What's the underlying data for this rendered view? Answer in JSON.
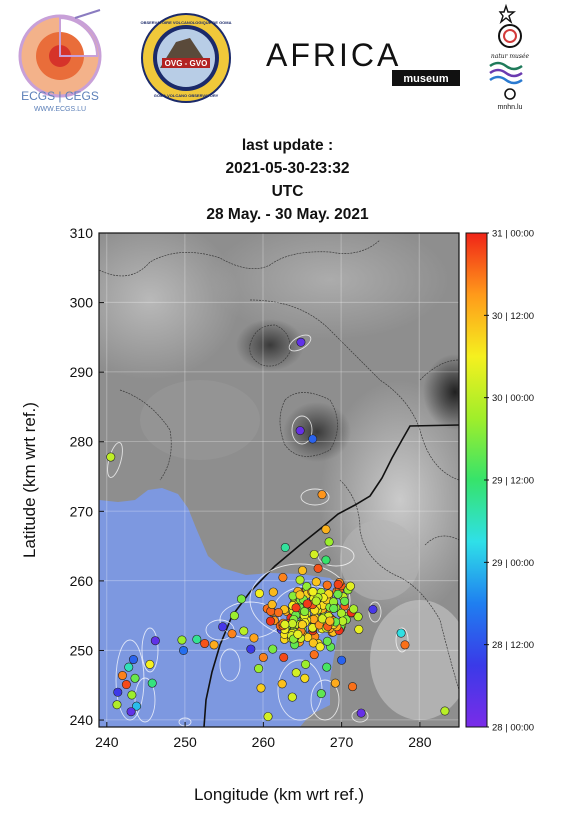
{
  "logos": {
    "ecgs": {
      "line1": "ECGS | CEGS",
      "line2": "WWW.ECGS.LU"
    },
    "ovg": {
      "ring_top": "OBSERVATOIRE VOLCANOLOGIQUE DE GOMA",
      "center": "OVG - GVO",
      "ring_bottom": "GOMA VOLCANO OBSERVATORY"
    },
    "africa": {
      "main": "AFRICA",
      "sub": "museum"
    },
    "mnhn": {
      "script": "natur musée",
      "sub": "mnhn.lu"
    }
  },
  "header": {
    "line1": "last update :",
    "line2": "2021-05-30-23:32",
    "line3": "UTC",
    "line4": "28 May. - 30 May. 2021"
  },
  "colors": {
    "water": "#7d98e0",
    "terrain_dark": "#4a4a4a",
    "terrain_light": "#dcdcdc",
    "fault": "#111111"
  },
  "chart_data": {
    "type": "scatter",
    "xlabel": "Longitude (km wrt ref.)",
    "ylabel": "Latitude (km wrt ref.)",
    "xlim": [
      239,
      285
    ],
    "ylim": [
      239,
      310
    ],
    "xticks": [
      240,
      250,
      260,
      270,
      280
    ],
    "yticks": [
      240,
      250,
      260,
      270,
      280,
      290,
      300,
      310
    ],
    "grid": true,
    "colorbar": {
      "label_ticks": [
        "31 | 00:00",
        "30 | 12:00",
        "30 | 00:00",
        "29 | 12:00",
        "29 | 00:00",
        "28 | 12:00",
        "28 | 00:00"
      ],
      "tick_fraction": [
        1.0,
        0.8333,
        0.6667,
        0.5,
        0.3333,
        0.1667,
        0.0
      ],
      "stops": [
        "#7a2ce8",
        "#3a3ae8",
        "#1f7ff0",
        "#2fe0e8",
        "#36e36b",
        "#a0ee2a",
        "#f5f01f",
        "#ff9a1a",
        "#f02418"
      ]
    },
    "points": [
      {
        "x": 240.5,
        "y": 277.8,
        "t": 0.67
      },
      {
        "x": 264.8,
        "y": 294.3,
        "t": 0.05
      },
      {
        "x": 264.7,
        "y": 281.6,
        "t": 0.04
      },
      {
        "x": 266.3,
        "y": 280.4,
        "t": 0.2
      },
      {
        "x": 267.5,
        "y": 272.4,
        "t": 0.88
      },
      {
        "x": 268.0,
        "y": 267.4,
        "t": 0.84
      },
      {
        "x": 268.4,
        "y": 265.6,
        "t": 0.62
      },
      {
        "x": 266.5,
        "y": 263.8,
        "t": 0.7
      },
      {
        "x": 268.0,
        "y": 263.0,
        "t": 0.5
      },
      {
        "x": 267.0,
        "y": 261.8,
        "t": 0.95
      },
      {
        "x": 265.0,
        "y": 261.5,
        "t": 0.82
      },
      {
        "x": 262.5,
        "y": 260.5,
        "t": 0.9
      },
      {
        "x": 262.8,
        "y": 264.8,
        "t": 0.45
      },
      {
        "x": 259.5,
        "y": 258.2,
        "t": 0.75
      },
      {
        "x": 257.2,
        "y": 257.4,
        "t": 0.58
      },
      {
        "x": 256.3,
        "y": 255.0,
        "t": 0.62
      },
      {
        "x": 260.5,
        "y": 256.0,
        "t": 0.92
      },
      {
        "x": 261.4,
        "y": 254.3,
        "t": 0.88
      },
      {
        "x": 262.3,
        "y": 253.0,
        "t": 0.1
      },
      {
        "x": 263.0,
        "y": 255.6,
        "t": 0.85
      },
      {
        "x": 264.0,
        "y": 257.4,
        "t": 0.93
      },
      {
        "x": 265.2,
        "y": 258.4,
        "t": 0.97
      },
      {
        "x": 266.3,
        "y": 257.0,
        "t": 0.99
      },
      {
        "x": 267.3,
        "y": 255.8,
        "t": 0.98
      },
      {
        "x": 268.3,
        "y": 257.0,
        "t": 0.96
      },
      {
        "x": 269.4,
        "y": 258.5,
        "t": 0.9
      },
      {
        "x": 270.4,
        "y": 256.4,
        "t": 0.94
      },
      {
        "x": 271.3,
        "y": 255.4,
        "t": 0.83
      },
      {
        "x": 270.0,
        "y": 253.6,
        "t": 0.65
      },
      {
        "x": 268.8,
        "y": 252.6,
        "t": 0.88
      },
      {
        "x": 267.6,
        "y": 253.6,
        "t": 0.95
      },
      {
        "x": 266.4,
        "y": 254.2,
        "t": 0.99
      },
      {
        "x": 265.4,
        "y": 255.0,
        "t": 0.9
      },
      {
        "x": 264.4,
        "y": 253.5,
        "t": 0.6
      },
      {
        "x": 263.4,
        "y": 252.4,
        "t": 0.7
      },
      {
        "x": 264.6,
        "y": 251.2,
        "t": 0.88
      },
      {
        "x": 266.0,
        "y": 252.2,
        "t": 0.3
      },
      {
        "x": 267.0,
        "y": 251.0,
        "t": 0.78
      },
      {
        "x": 268.6,
        "y": 250.5,
        "t": 0.55
      },
      {
        "x": 266.5,
        "y": 249.4,
        "t": 0.92
      },
      {
        "x": 265.4,
        "y": 248.0,
        "t": 0.62
      },
      {
        "x": 264.2,
        "y": 246.8,
        "t": 0.7
      },
      {
        "x": 265.3,
        "y": 246.0,
        "t": 0.78
      },
      {
        "x": 268.1,
        "y": 247.6,
        "t": 0.52
      },
      {
        "x": 269.2,
        "y": 245.3,
        "t": 0.85
      },
      {
        "x": 270.0,
        "y": 248.6,
        "t": 0.2
      },
      {
        "x": 262.6,
        "y": 249.0,
        "t": 0.96
      },
      {
        "x": 261.2,
        "y": 250.2,
        "t": 0.58
      },
      {
        "x": 260.0,
        "y": 249.0,
        "t": 0.9
      },
      {
        "x": 258.4,
        "y": 250.2,
        "t": 0.12
      },
      {
        "x": 259.4,
        "y": 247.4,
        "t": 0.62
      },
      {
        "x": 259.7,
        "y": 244.6,
        "t": 0.8
      },
      {
        "x": 258.8,
        "y": 251.8,
        "t": 0.86
      },
      {
        "x": 257.5,
        "y": 252.8,
        "t": 0.66
      },
      {
        "x": 256.0,
        "y": 252.4,
        "t": 0.9
      },
      {
        "x": 254.8,
        "y": 253.4,
        "t": 0.1
      },
      {
        "x": 253.7,
        "y": 250.8,
        "t": 0.85
      },
      {
        "x": 252.5,
        "y": 251.0,
        "t": 0.95
      },
      {
        "x": 251.5,
        "y": 251.6,
        "t": 0.46
      },
      {
        "x": 260.6,
        "y": 240.5,
        "t": 0.7
      },
      {
        "x": 249.6,
        "y": 251.5,
        "t": 0.62
      },
      {
        "x": 249.8,
        "y": 250.0,
        "t": 0.22
      },
      {
        "x": 246.2,
        "y": 251.4,
        "t": 0.05
      },
      {
        "x": 245.5,
        "y": 248.0,
        "t": 0.75
      },
      {
        "x": 245.8,
        "y": 245.3,
        "t": 0.48
      },
      {
        "x": 243.4,
        "y": 248.7,
        "t": 0.2
      },
      {
        "x": 242.8,
        "y": 247.6,
        "t": 0.42
      },
      {
        "x": 242.0,
        "y": 246.4,
        "t": 0.9
      },
      {
        "x": 243.6,
        "y": 246.0,
        "t": 0.56
      },
      {
        "x": 242.5,
        "y": 245.1,
        "t": 0.96
      },
      {
        "x": 241.4,
        "y": 244.0,
        "t": 0.12
      },
      {
        "x": 243.2,
        "y": 243.6,
        "t": 0.62
      },
      {
        "x": 243.8,
        "y": 242.0,
        "t": 0.33
      },
      {
        "x": 241.3,
        "y": 242.2,
        "t": 0.65
      },
      {
        "x": 243.1,
        "y": 241.2,
        "t": 0.05
      },
      {
        "x": 271.4,
        "y": 244.8,
        "t": 0.92
      },
      {
        "x": 272.5,
        "y": 241.0,
        "t": 0.04
      },
      {
        "x": 274.0,
        "y": 255.9,
        "t": 0.1
      },
      {
        "x": 277.6,
        "y": 252.5,
        "t": 0.38
      },
      {
        "x": 278.1,
        "y": 250.8,
        "t": 0.92
      },
      {
        "x": 283.2,
        "y": 241.3,
        "t": 0.66
      },
      {
        "x": 267.4,
        "y": 243.8,
        "t": 0.55
      },
      {
        "x": 263.7,
        "y": 243.3,
        "t": 0.7
      },
      {
        "x": 262.4,
        "y": 245.2,
        "t": 0.82
      }
    ]
  }
}
